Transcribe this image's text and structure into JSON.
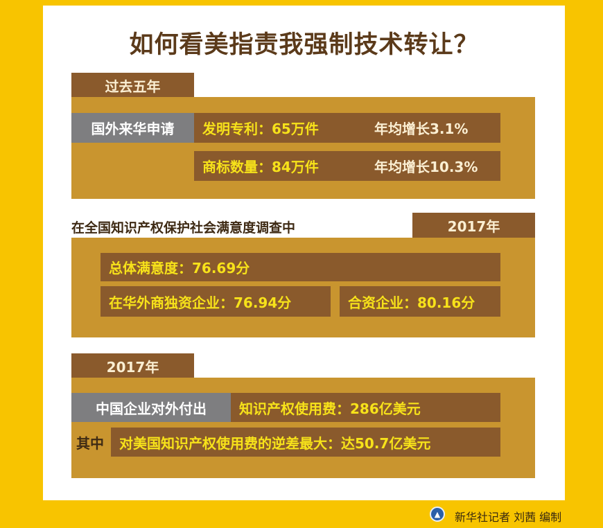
{
  "title": "如何看美指责我强制技术转让？",
  "section1": {
    "tab": "过去五年",
    "label": "国外来华申请",
    "rows": [
      {
        "item": "发明专利：65万件",
        "growth": "年均增长3.1%"
      },
      {
        "item": "商标数量：84万件",
        "growth": "年均增长10.3%"
      }
    ]
  },
  "section2": {
    "heading": "在全国知识产权保护社会满意度调查中",
    "tab": "2017年",
    "overall": "总体满意度：76.69分",
    "wfoe": "在华外商独资企业：76.94分",
    "jv": "合资企业：80.16分"
  },
  "section3": {
    "tab": "2017年",
    "label": "中国企业对外付出",
    "fee": "知识产权使用费：286亿美元",
    "among": "其中",
    "deficit": "对美国知识产权使用费的逆差最大：达50.7亿美元"
  },
  "footer": {
    "credit": "新华社记者 刘茜 编制",
    "logo_icon": "xinhua-logo"
  },
  "colors": {
    "background": "#F8C400",
    "gold": "#C9952F",
    "brown": "#8A5A2C",
    "gray": "#7E7E80",
    "highlight": "#F7E21A"
  }
}
